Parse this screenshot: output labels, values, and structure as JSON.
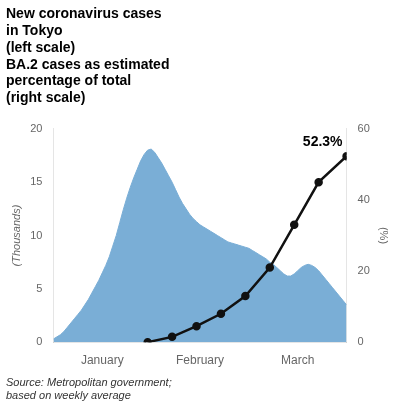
{
  "chart_data": {
    "type": "line",
    "title": [
      "New coronavirus cases",
      "in Tokyo",
      "(left scale)",
      "BA.2 cases as estimated",
      "percentage of total",
      "(right scale)"
    ],
    "source": [
      "Source: Metropolitan government;",
      "based on weekly average"
    ],
    "background_color": "#ffffff",
    "xlim": [
      0,
      84
    ],
    "xticks": [
      {
        "value": 14,
        "label": "January"
      },
      {
        "value": 42,
        "label": "February"
      },
      {
        "value": 70,
        "label": "March"
      }
    ],
    "ylim": [
      0,
      20
    ],
    "yticks": [
      0,
      5,
      10,
      15,
      20
    ],
    "y_label": "(Thousands)",
    "y2lim": [
      0,
      60
    ],
    "y2ticks": [
      0,
      20,
      40,
      60
    ],
    "y2_label": "(%)",
    "grid": false,
    "annotations": [
      {
        "text": "52.3%",
        "x": 84,
        "y": 52.3,
        "axis": "y2"
      }
    ],
    "series": [
      {
        "type": "area",
        "color": "#7aaed6",
        "x": [
          0,
          1,
          2,
          3,
          4,
          5,
          6,
          7,
          8,
          9,
          10,
          11,
          12,
          13,
          14,
          15,
          16,
          17,
          18,
          19,
          20,
          21,
          22,
          23,
          24,
          25,
          26,
          27,
          28,
          29,
          30,
          31,
          32,
          33,
          34,
          35,
          36,
          37,
          38,
          39,
          40,
          41,
          42,
          43,
          44,
          45,
          46,
          47,
          48,
          49,
          50,
          51,
          52,
          53,
          54,
          55,
          56,
          57,
          58,
          59,
          60,
          61,
          62,
          63,
          64,
          65,
          66,
          67,
          68,
          69,
          70,
          71,
          72,
          73,
          74,
          75,
          76,
          77,
          78,
          79,
          80,
          81,
          82,
          83,
          84
        ],
        "values": [
          0.3,
          0.5,
          0.7,
          1.0,
          1.4,
          1.8,
          2.2,
          2.6,
          3.0,
          3.5,
          4.0,
          4.6,
          5.2,
          5.8,
          6.5,
          7.2,
          8.0,
          9.0,
          10.0,
          11.2,
          12.4,
          13.5,
          14.5,
          15.4,
          16.2,
          17.0,
          17.6,
          18.0,
          18.1,
          17.8,
          17.3,
          16.8,
          16.2,
          15.6,
          15.0,
          14.3,
          13.6,
          13.0,
          12.5,
          12.0,
          11.6,
          11.3,
          11.0,
          10.8,
          10.6,
          10.4,
          10.2,
          10.0,
          9.8,
          9.6,
          9.4,
          9.3,
          9.2,
          9.1,
          9.0,
          8.9,
          8.8,
          8.6,
          8.4,
          8.2,
          8.0,
          7.8,
          7.5,
          7.3,
          7.0,
          6.7,
          6.4,
          6.2,
          6.2,
          6.4,
          6.7,
          7.0,
          7.2,
          7.3,
          7.2,
          7.0,
          6.7,
          6.3,
          5.9,
          5.5,
          5.1,
          4.7,
          4.3,
          3.9,
          3.5
        ]
      },
      {
        "type": "line",
        "color": "#111111",
        "marker": "circle",
        "axis": "y2",
        "x": [
          27,
          34,
          41,
          48,
          55,
          62,
          69,
          76,
          84
        ],
        "values": [
          0.0,
          1.5,
          4.5,
          8.0,
          13.0,
          21.0,
          33.0,
          45.0,
          52.3
        ]
      }
    ]
  }
}
